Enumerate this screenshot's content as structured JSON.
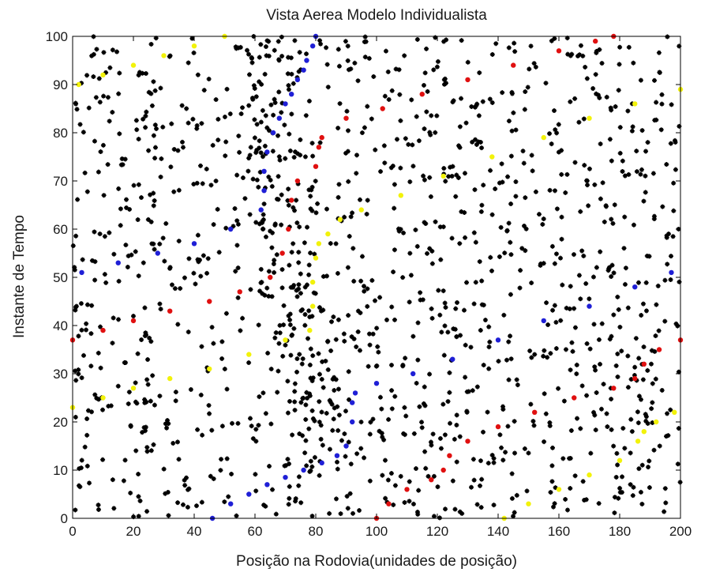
{
  "chart_data": {
    "type": "scatter",
    "title": "Vista Aerea Modelo Individualista",
    "xlabel": "Posição na Rodovia(unidades de posição)",
    "ylabel": "Instante de Tempo",
    "xlim": [
      0,
      200
    ],
    "ylim": [
      0,
      100
    ],
    "xticks": [
      0,
      20,
      40,
      60,
      80,
      100,
      120,
      140,
      160,
      180,
      200
    ],
    "yticks": [
      0,
      10,
      20,
      30,
      40,
      50,
      60,
      70,
      80,
      90,
      100
    ],
    "grid": false,
    "legend": "none",
    "colors": {
      "background": "#000000",
      "blue": "#1f1fd6",
      "red": "#e01010",
      "yellow": "#f2f20a",
      "axes": "#000000"
    },
    "series": [
      {
        "color": "blue",
        "x": [
          46,
          52,
          58,
          64,
          70,
          76,
          82,
          87,
          90,
          92,
          92,
          93,
          100,
          112,
          125,
          140,
          155,
          170,
          185,
          197
        ],
        "y": [
          0,
          3,
          5,
          7,
          8.5,
          10,
          11.5,
          13,
          15,
          20,
          24,
          26,
          28,
          30,
          33,
          37,
          41,
          44,
          48,
          51
        ]
      },
      {
        "color": "blue",
        "x": [
          3,
          15,
          28,
          40,
          52,
          62,
          63,
          63,
          64,
          66,
          68,
          70,
          72,
          74,
          76,
          77,
          79,
          80
        ],
        "y": [
          51,
          53,
          55,
          57,
          60,
          64,
          68,
          72,
          76,
          80,
          83,
          86,
          88,
          91,
          93,
          95,
          98,
          100
        ]
      },
      {
        "color": "red",
        "x": [
          100,
          104,
          110,
          118,
          122,
          124,
          130,
          140,
          152,
          165,
          178,
          185,
          188,
          193,
          200
        ],
        "y": [
          0,
          3,
          6,
          8,
          10,
          13,
          16,
          19,
          22,
          25,
          27,
          29,
          32,
          35,
          37
        ]
      },
      {
        "color": "red",
        "x": [
          0,
          10,
          20,
          32,
          45,
          55,
          65,
          69,
          71,
          72,
          74,
          80,
          81,
          82,
          90,
          102,
          115,
          130,
          145,
          160,
          172,
          178
        ],
        "y": [
          37,
          39,
          41,
          43,
          45,
          47,
          50,
          55,
          60,
          66,
          70,
          73,
          77,
          79,
          83,
          85,
          88,
          91,
          94,
          97,
          99,
          100
        ]
      },
      {
        "color": "yellow",
        "x": [
          142,
          150,
          160,
          170,
          180,
          186,
          188,
          192,
          198
        ],
        "y": [
          0,
          3,
          6,
          9,
          12,
          16,
          18,
          20,
          22
        ]
      },
      {
        "color": "yellow",
        "x": [
          0,
          10,
          20,
          32,
          45,
          58,
          70,
          78,
          79,
          79,
          80,
          81,
          84,
          88,
          95,
          108,
          122,
          138,
          155,
          170,
          185,
          200
        ],
        "y": [
          23,
          25,
          27,
          29,
          31,
          34,
          37,
          39,
          44,
          49,
          54,
          57,
          59,
          62,
          64,
          67,
          71,
          75,
          79,
          83,
          86,
          89
        ]
      },
      {
        "color": "yellow",
        "x": [
          2,
          10,
          20,
          30,
          40,
          50
        ],
        "y": [
          90,
          92,
          94,
          96,
          98,
          100
        ]
      }
    ]
  }
}
